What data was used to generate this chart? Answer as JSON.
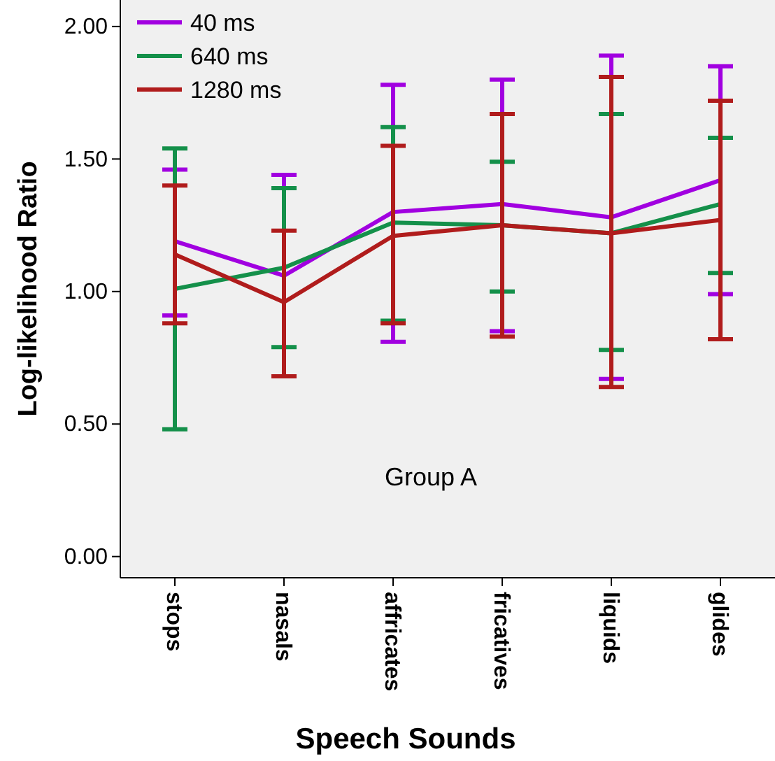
{
  "chart_data": {
    "type": "line",
    "xlabel": "Speech Sounds",
    "ylabel": "Log-likelihood Ratio",
    "annotations": [
      "Group A"
    ],
    "categories": [
      "stops",
      "nasals",
      "affricates",
      "fricatives",
      "liquids",
      "glides"
    ],
    "ylim": [
      -0.08,
      2.1
    ],
    "yticks": [
      {
        "value": 0,
        "label": "0.00"
      },
      {
        "value": 0.5,
        "label": "0.50"
      },
      {
        "value": 1,
        "label": "1.00"
      },
      {
        "value": 1.5,
        "label": "1.50"
      },
      {
        "value": 2,
        "label": "2.00"
      }
    ],
    "grid": false,
    "legend": "top left",
    "marker": "none",
    "line_style": "solid",
    "series": [
      {
        "name": "40 ms",
        "color": "#a100e0",
        "values": [
          1.19,
          1.06,
          1.3,
          1.33,
          1.28,
          1.42
        ],
        "errors": [
          [
            0.91,
            1.46
          ],
          [
            0.68,
            1.44
          ],
          [
            0.81,
            1.78
          ],
          [
            0.85,
            1.8
          ],
          [
            0.67,
            1.89
          ],
          [
            0.99,
            1.85
          ]
        ]
      },
      {
        "name": "640 ms",
        "color": "#14904a",
        "values": [
          1.01,
          1.09,
          1.26,
          1.25,
          1.22,
          1.33
        ],
        "errors": [
          [
            0.48,
            1.54
          ],
          [
            0.79,
            1.39
          ],
          [
            0.89,
            1.62
          ],
          [
            1.0,
            1.49
          ],
          [
            0.78,
            1.67
          ],
          [
            1.07,
            1.58
          ]
        ]
      },
      {
        "name": "1280 ms",
        "color": "#b01c1c",
        "values": [
          1.14,
          0.96,
          1.21,
          1.25,
          1.22,
          1.27
        ],
        "errors": [
          [
            0.88,
            1.4
          ],
          [
            0.68,
            1.23
          ],
          [
            0.88,
            1.55
          ],
          [
            0.83,
            1.67
          ],
          [
            0.64,
            1.81
          ],
          [
            0.82,
            1.72
          ]
        ]
      }
    ]
  }
}
